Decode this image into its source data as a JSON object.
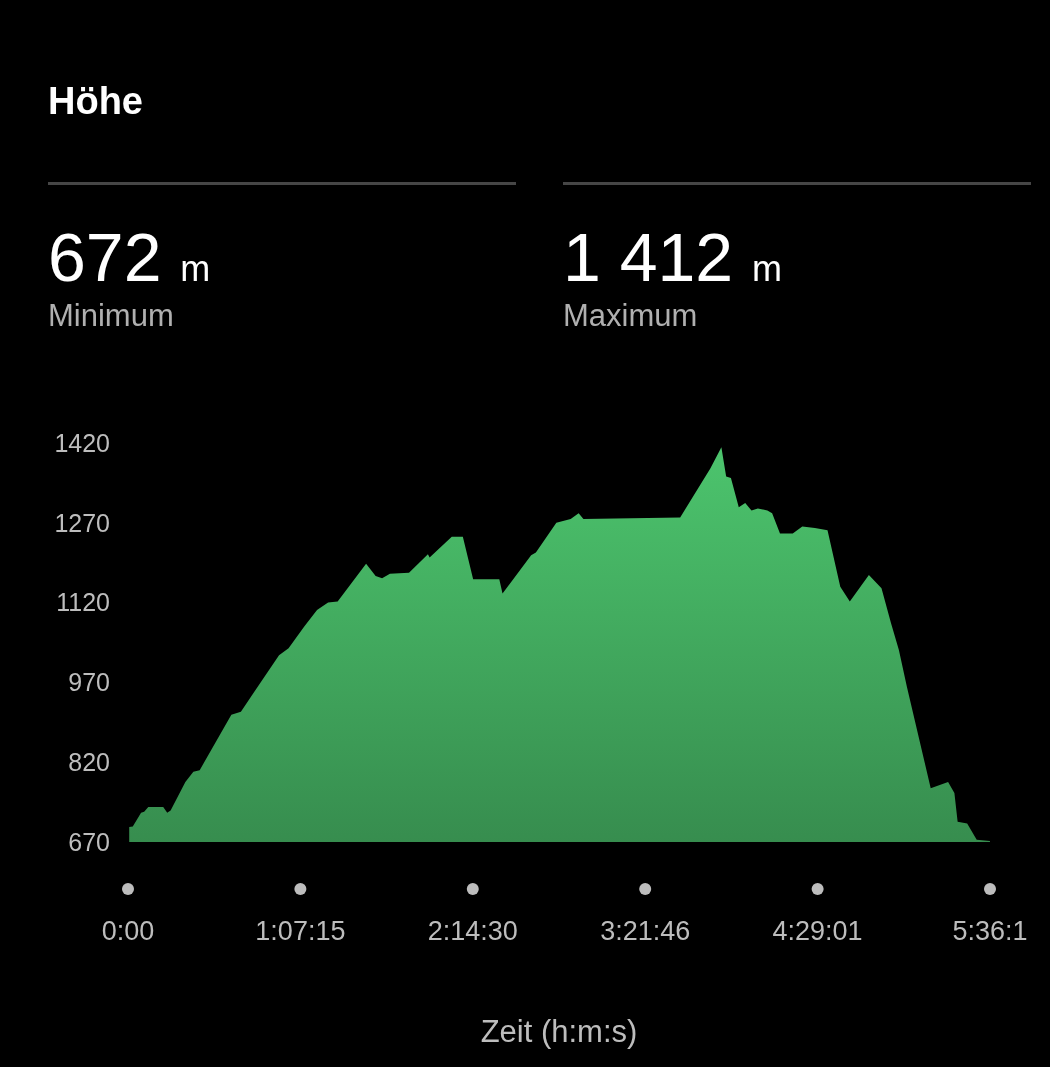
{
  "chart_data": {
    "type": "area",
    "title": "Höhe",
    "xlabel": "Zeit (h:m:s)",
    "annotations": [
      "672 m",
      "Minimum",
      "1 412 m",
      "Maximum"
    ],
    "x": [
      0.008,
      0.008,
      0.031,
      0.085,
      0.105,
      0.132,
      0.229,
      0.255,
      0.277,
      0.373,
      0.425,
      0.466,
      0.672,
      0.734,
      0.982,
      1.044,
      1.146,
      1.229,
      1.301,
      1.363,
      1.548,
      1.61,
      1.652,
      1.703,
      1.827,
      1.95,
      1.961,
      2.105,
      2.177,
      2.244,
      2.414,
      2.435,
      2.621,
      2.652,
      2.785,
      2.878,
      2.93,
      2.961,
      3.59,
      3.786,
      3.858,
      3.889,
      3.92,
      3.971,
      4.013,
      4.054,
      4.095,
      4.157,
      4.188,
      4.239,
      4.322,
      4.384,
      4.466,
      4.548,
      4.631,
      4.693,
      4.817,
      4.899,
      4.961,
      5.012,
      5.064,
      5.219,
      5.332,
      5.373,
      5.394,
      5.456,
      5.518,
      5.604
    ],
    "series": [
      {
        "color": "#4cc46d",
        "values": [
          672,
          698,
          699,
          725,
          727,
          736,
          736,
          725,
          729,
          783,
          802,
          805,
          909,
          915,
          1021,
          1034,
          1075,
          1106,
          1120,
          1122,
          1193,
          1170,
          1166,
          1174,
          1176,
          1211,
          1205,
          1244,
          1244,
          1164,
          1164,
          1137,
          1209,
          1214,
          1270,
          1277,
          1288,
          1277,
          1280,
          1372,
          1412,
          1357,
          1354,
          1299,
          1307,
          1293,
          1297,
          1293,
          1288,
          1250,
          1250,
          1263,
          1260,
          1256,
          1150,
          1122,
          1172,
          1147,
          1081,
          1031,
          962,
          771,
          783,
          762,
          708,
          705,
          674,
          672
        ]
      }
    ],
    "xlim": [
      0,
      5.604444
    ],
    "xticks": [
      {
        "value": 0,
        "label": "0:00"
      },
      {
        "value": 1.120833,
        "label": "1:07:15"
      },
      {
        "value": 2.241667,
        "label": "2:14:30"
      },
      {
        "value": 3.362778,
        "label": "3:21:46"
      },
      {
        "value": 4.483611,
        "label": "4:29:01"
      },
      {
        "value": 5.604444,
        "label": "5:36:1"
      }
    ],
    "ylim": [
      670,
      1420
    ],
    "yticks": [
      670,
      820,
      970,
      1120,
      1270,
      1420
    ]
  }
}
